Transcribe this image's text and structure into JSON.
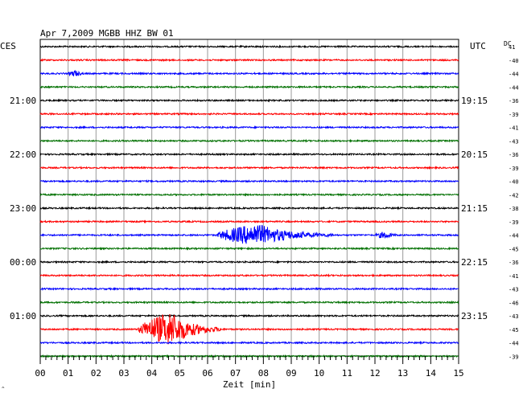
{
  "header": {
    "title": "Apr 7,2009   MGBB HHZ BW 01",
    "left_tz": "CES",
    "right_tz": "UTC",
    "dc_label": "DC"
  },
  "chart_data": {
    "type": "line",
    "title": "Apr 7,2009   MGBB HHZ BW 01",
    "xlabel": "Zeit [min]",
    "xlim": [
      0,
      15
    ],
    "x_ticks": [
      "00",
      "01",
      "02",
      "03",
      "04",
      "05",
      "06",
      "07",
      "08",
      "09",
      "10",
      "11",
      "12",
      "13",
      "14",
      "15"
    ],
    "grid": true,
    "trace_colors": [
      "#000000",
      "#ff0000",
      "#0000ff",
      "#007000"
    ],
    "left_time_labels": [
      {
        "trace": 4,
        "label": "21:00"
      },
      {
        "trace": 8,
        "label": "22:00"
      },
      {
        "trace": 12,
        "label": "23:00"
      },
      {
        "trace": 16,
        "label": "00:00"
      },
      {
        "trace": 20,
        "label": "01:00"
      }
    ],
    "right_time_labels": [
      {
        "trace": 4,
        "label": "19:15"
      },
      {
        "trace": 8,
        "label": "20:15"
      },
      {
        "trace": 12,
        "label": "21:15"
      },
      {
        "trace": 16,
        "label": "22:15"
      },
      {
        "trace": 20,
        "label": "23:15"
      }
    ],
    "dc_offsets": [
      "41",
      "-40",
      "-44",
      "-44",
      "-36",
      "-39",
      "-41",
      "-43",
      "-36",
      "-39",
      "-40",
      "-42",
      "-38",
      "-39",
      "-44",
      "-45",
      "-36",
      "-41",
      "-43",
      "-46",
      "-43",
      "-45",
      "-44",
      "-39"
    ],
    "events": [
      {
        "trace": 2,
        "start_min": 1.0,
        "end_min": 1.6,
        "peak_min": 1.3,
        "amplitude": 0.25
      },
      {
        "trace": 14,
        "start_min": 6.3,
        "end_min": 10.5,
        "peak_min": 7.8,
        "amplitude": 1.0
      },
      {
        "trace": 14,
        "start_min": 12.0,
        "end_min": 12.8,
        "peak_min": 12.4,
        "amplitude": 0.3
      },
      {
        "trace": 21,
        "start_min": 3.5,
        "end_min": 6.5,
        "peak_min": 4.7,
        "amplitude": 1.6
      }
    ]
  }
}
